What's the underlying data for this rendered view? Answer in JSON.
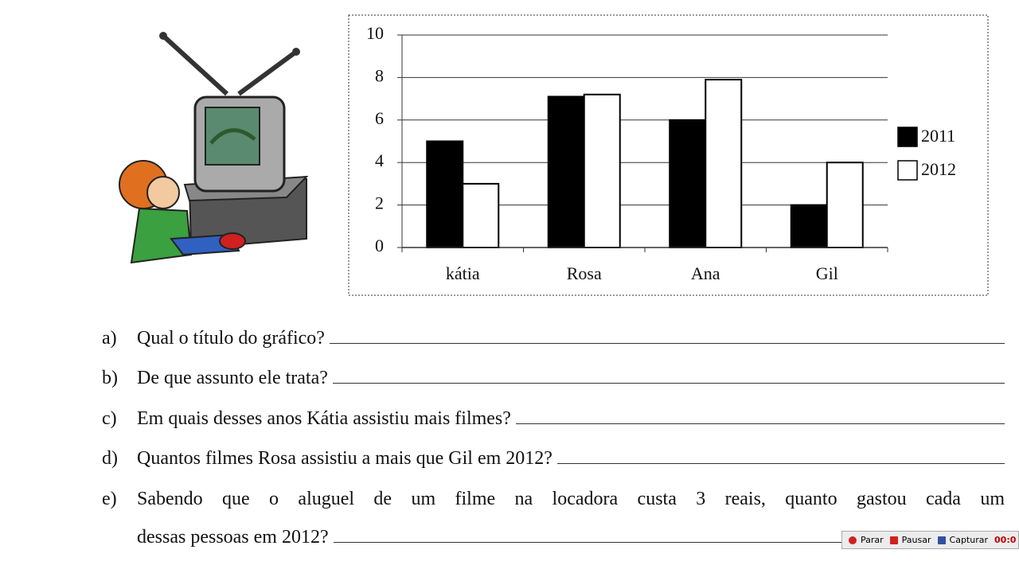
{
  "chart_data": {
    "type": "bar",
    "categories": [
      "kátia",
      "Rosa",
      "Ana",
      "Gil"
    ],
    "series": [
      {
        "name": "2011",
        "color": "#000000",
        "values": [
          5,
          7.1,
          6,
          2
        ]
      },
      {
        "name": "2012",
        "color": "#ffffff",
        "values": [
          3,
          7.2,
          7.9,
          4
        ]
      }
    ],
    "ylim": [
      0,
      10
    ],
    "yticks": [
      0,
      2,
      4,
      6,
      8,
      10
    ],
    "grid": true,
    "legend": "right"
  },
  "questions": [
    {
      "label": "a)",
      "lines": [
        "Qual o título do gráfico?"
      ]
    },
    {
      "label": "b)",
      "lines": [
        "De que assunto ele trata?"
      ]
    },
    {
      "label": "c)",
      "lines": [
        "Em quais desses anos Kátia assistiu mais filmes?"
      ]
    },
    {
      "label": "d)",
      "lines": [
        "Quantos filmes Rosa assistiu a mais que Gil em 2012?"
      ]
    },
    {
      "label": "e)",
      "lines": [
        "Sabendo que o aluguel de um filme na locadora custa 3 reais, quanto gastou cada um",
        "dessas pessoas em 2012?"
      ]
    }
  ],
  "toolbar": [
    "Parar",
    "Pausar",
    "Capturar",
    "00:0"
  ]
}
